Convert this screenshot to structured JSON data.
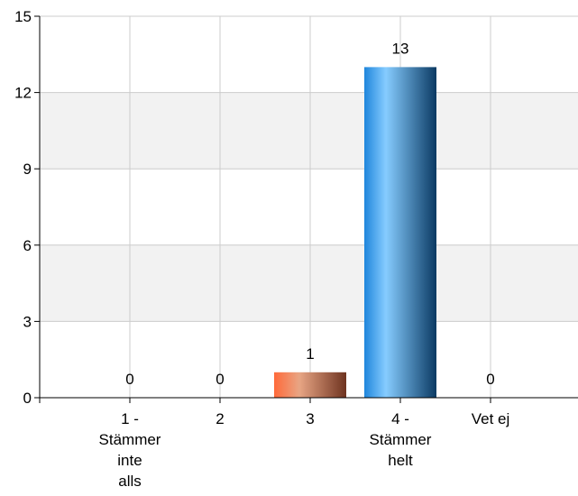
{
  "chart_data": {
    "type": "bar",
    "title": "",
    "xlabel": "",
    "ylabel": "",
    "categories": [
      [
        "1 -",
        "Stämmer",
        "inte",
        "alls"
      ],
      [
        "2"
      ],
      [
        "3"
      ],
      [
        "4 -",
        "Stämmer",
        "helt"
      ],
      [
        "Vet ej"
      ]
    ],
    "values": [
      0,
      0,
      1,
      13,
      0
    ],
    "data_labels": [
      "0",
      "0",
      "1",
      "13",
      "0"
    ],
    "ylim": [
      0,
      15
    ],
    "yticks": [
      0,
      3,
      6,
      9,
      12,
      15
    ],
    "ytick_labels": [
      "0",
      "3",
      "6",
      "9",
      "12",
      "15"
    ],
    "grid": true,
    "alternating_bands": true,
    "colors": {
      "band": "#f2f2f2",
      "grid": "#cccccc",
      "axis": "#000000",
      "bar_3": [
        "#ff7a4d",
        "#e8a080",
        "#7a3a25"
      ],
      "bar_4": [
        "#2a8ee0",
        "#7cc8ff",
        "#0c3d66"
      ]
    }
  }
}
